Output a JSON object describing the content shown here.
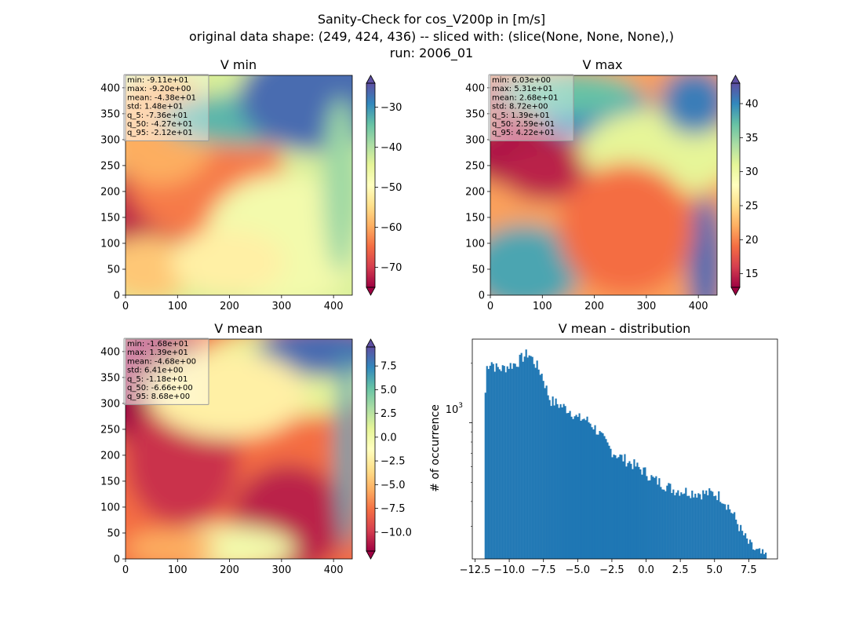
{
  "suptitle": {
    "line1": "Sanity-Check for cos_V200p in [m/s]",
    "line2": "original data shape: (249, 424, 436) -- sliced with: (slice(None, None, None),)",
    "line3": "run: 2006_01"
  },
  "palette": {
    "spectral": [
      "#9e0142",
      "#d53e4f",
      "#f46d43",
      "#fdae61",
      "#fee08b",
      "#ffffbf",
      "#e6f598",
      "#abdda4",
      "#66c2a5",
      "#3288bd",
      "#5e4fa2"
    ],
    "hist_bar": "#1f77b4",
    "stats_box_bg": "#d9d9d9"
  },
  "chart_data": [
    {
      "type": "heatmap",
      "title": "V min",
      "xlim": [
        0,
        436
      ],
      "ylim": [
        0,
        424
      ],
      "xticks": [
        "0",
        "100",
        "200",
        "300",
        "400"
      ],
      "yticks": [
        "0",
        "50",
        "100",
        "150",
        "200",
        "250",
        "300",
        "350",
        "400"
      ],
      "colorbar": {
        "min": -75,
        "max": -24,
        "extend": "both",
        "ticks": [
          "−70",
          "−60",
          "−50",
          "−40",
          "−30"
        ]
      },
      "stats": [
        "min: -9.11e+01",
        "max: -9.20e+00",
        "mean: -4.38e+01",
        "std: 1.48e+01",
        "q_5: -7.36e+01",
        "q_50: -4.27e+01",
        "q_95: -2.12e+01"
      ]
    },
    {
      "type": "heatmap",
      "title": "V max",
      "xlim": [
        0,
        436
      ],
      "ylim": [
        0,
        424
      ],
      "xticks": [
        "0",
        "100",
        "200",
        "300",
        "400"
      ],
      "yticks": [
        "0",
        "50",
        "100",
        "150",
        "200",
        "250",
        "300",
        "350",
        "400"
      ],
      "colorbar": {
        "min": 13,
        "max": 43,
        "extend": "both",
        "ticks": [
          "15",
          "20",
          "25",
          "30",
          "35",
          "40"
        ]
      },
      "stats": [
        "min: 6.03e+00",
        "max: 5.31e+01",
        "mean: 2.68e+01",
        "std: 8.72e+00",
        "q_5: 1.39e+01",
        "q_50: 2.59e+01",
        "q_95: 4.22e+01"
      ]
    },
    {
      "type": "heatmap",
      "title": "V mean",
      "xlim": [
        0,
        436
      ],
      "ylim": [
        0,
        424
      ],
      "xticks": [
        "0",
        "100",
        "200",
        "300",
        "400"
      ],
      "yticks": [
        "0",
        "50",
        "100",
        "150",
        "200",
        "250",
        "300",
        "350",
        "400"
      ],
      "colorbar": {
        "min": -12,
        "max": 9.5,
        "extend": "both",
        "ticks": [
          "−10.0",
          "−7.5",
          "−5.0",
          "−2.5",
          "0.0",
          "2.5",
          "5.0",
          "7.5"
        ]
      },
      "stats": [
        "min: -1.68e+01",
        "max: 1.39e+01",
        "mean: -4.68e+00",
        "std: 6.41e+00",
        "q_5: -1.18e+01",
        "q_50: -6.66e+00",
        "q_95: 8.68e+00"
      ]
    },
    {
      "type": "bar",
      "title": "V mean - distribution",
      "ylabel": "# of occurrence",
      "yscale": "log",
      "xlim": [
        -12.7,
        9.6
      ],
      "ylim": [
        205,
        2650
      ],
      "xticks": [
        "−12.5",
        "−10.0",
        "−7.5",
        "−5.0",
        "−2.5",
        "0.0",
        "2.5",
        "5.0",
        "7.5"
      ],
      "ytick_label": "10",
      "ytick_exp": "3",
      "bin_range": [
        -11.8,
        8.8
      ],
      "bin_count": 180,
      "profile_x": [
        -11.8,
        -11.7,
        -11.6,
        -11.3,
        -11.0,
        -10.5,
        -10.0,
        -9.5,
        -9.0,
        -8.6,
        -8.3,
        -8.0,
        -7.6,
        -7.3,
        -7.0,
        -6.5,
        -6.0,
        -5.5,
        -5.0,
        -4.5,
        -4.0,
        -3.5,
        -3.0,
        -2.5,
        -2.0,
        -1.0,
        0.0,
        0.5,
        1.0,
        1.5,
        2.0,
        2.5,
        3.0,
        4.0,
        5.0,
        5.5,
        6.0,
        6.5,
        7.0,
        7.5,
        8.0,
        8.5,
        8.8
      ],
      "profile_y": [
        1000,
        1850,
        1950,
        2050,
        1900,
        1880,
        1950,
        2000,
        2150,
        2250,
        2100,
        1950,
        1750,
        1500,
        1300,
        1250,
        1200,
        1150,
        1050,
        1050,
        990,
        900,
        800,
        720,
        680,
        620,
        560,
        520,
        500,
        480,
        460,
        455,
        450,
        440,
        440,
        420,
        380,
        330,
        280,
        245,
        225,
        215,
        210
      ]
    }
  ]
}
